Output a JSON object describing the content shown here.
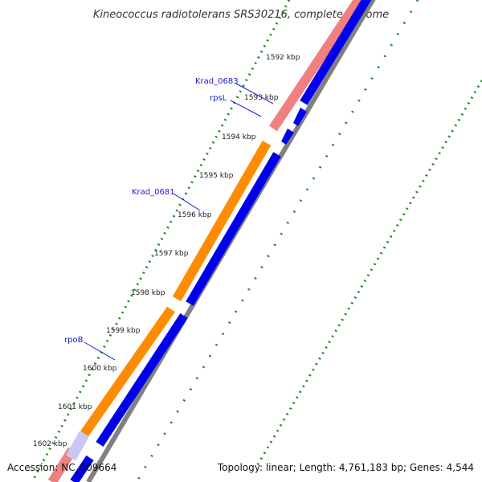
{
  "title": "Kineococcus radiotolerans SRS30216, complete genome",
  "accession": "Accession: NC_009664",
  "summary": "Topology: linear; Length: 4,761,183 bp; Genes: 4,544",
  "ticks": [
    "1592 kbp",
    "1593 kbp",
    "1594 kbp",
    "1595 kbp",
    "1596 kbp",
    "1597 kbp",
    "1598 kbp",
    "1599 kbp",
    "1600 kbp",
    "1601 kbp",
    "1602 kbp"
  ],
  "genes": [
    {
      "name": "Krad_0683",
      "kind": "CDS-minor"
    },
    {
      "name": "rpsL",
      "kind": "CDS-minor"
    },
    {
      "name": "Krad_0681",
      "kind": "CDS-major"
    },
    {
      "name": "rpoB",
      "kind": "CDS-major"
    }
  ],
  "colors": {
    "cds_major": "#ff8c00",
    "cds_minor": "#f08080",
    "strand_blue": "#0000ee",
    "backbone": "#808080",
    "tick_green": "#228b22",
    "gene_label": "#1a1acc"
  }
}
